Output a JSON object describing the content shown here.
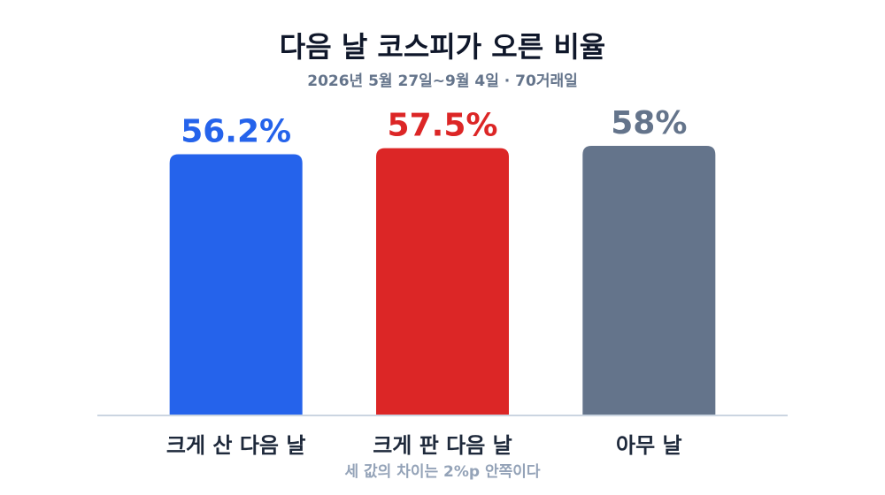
{
  "chart_data": {
    "type": "bar",
    "title": "다음 날 코스피가 오른 비율",
    "subtitle": "2026년 5월 27일~9월 4일 · 70거래일",
    "categories": [
      "크게 산 다음 날",
      "크게 판 다음 날",
      "아무 날"
    ],
    "values": [
      56.2,
      57.5,
      58
    ],
    "value_labels": [
      "56.2%",
      "57.5%",
      "58%"
    ],
    "colors": [
      "#2563eb",
      "#dc2626",
      "#64748b"
    ],
    "ylim": [
      0,
      60
    ],
    "annotation": "세 값의 차이는 2%p 안쪽이다"
  }
}
